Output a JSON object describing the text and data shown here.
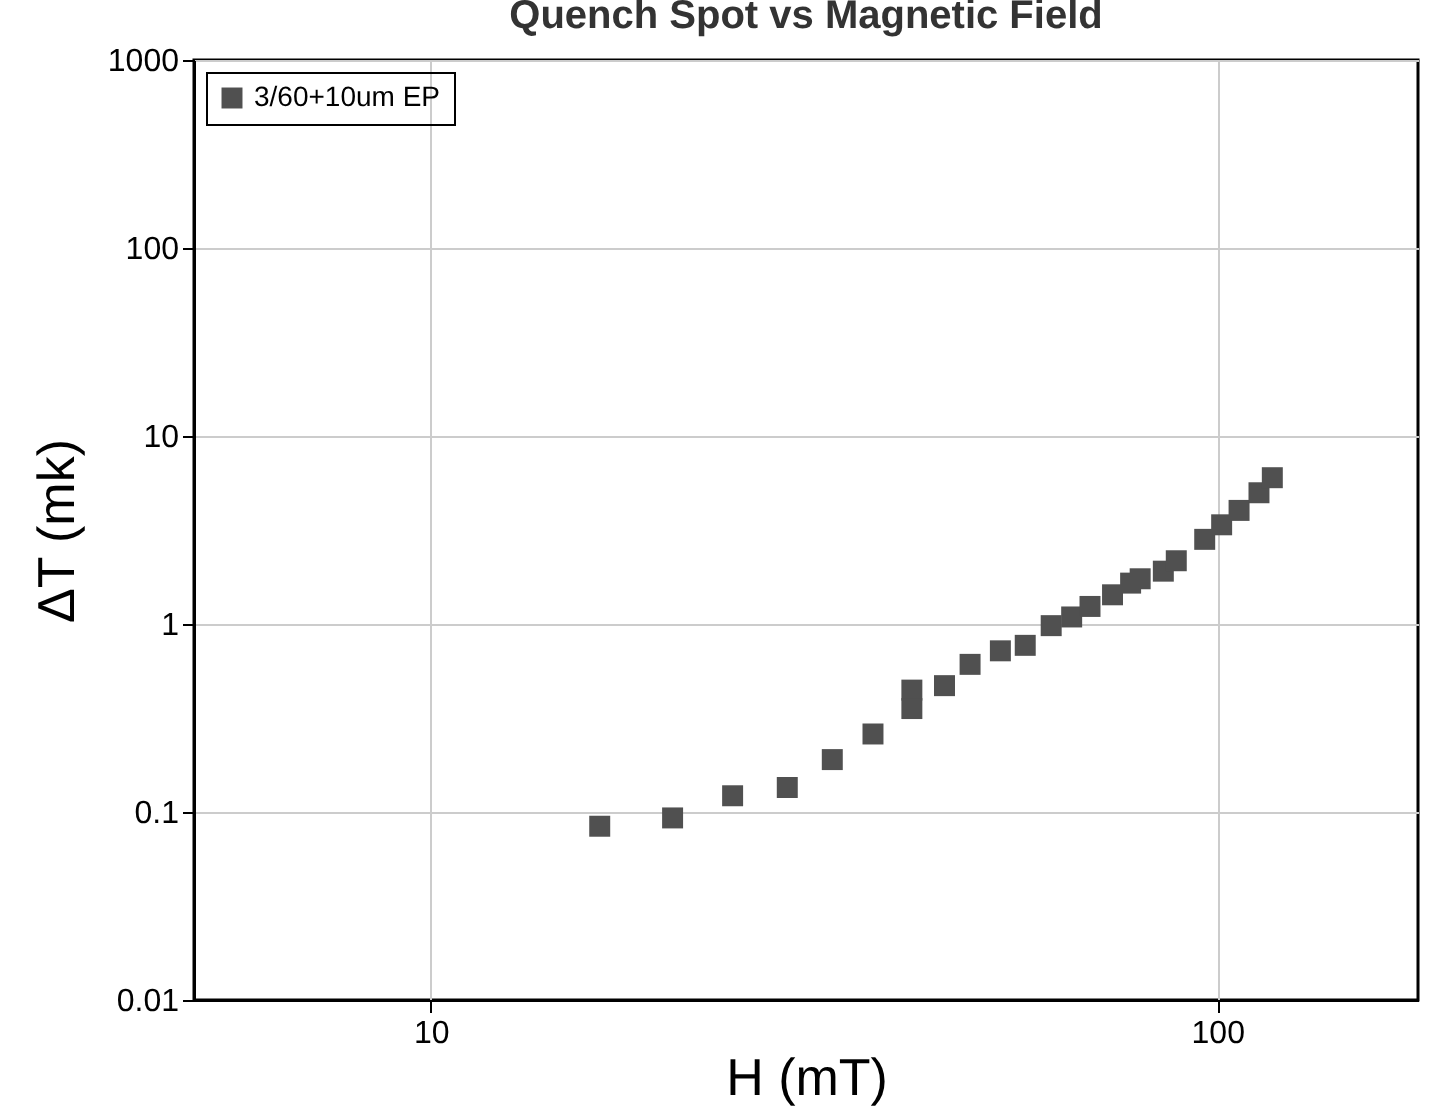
{
  "chart_data": {
    "type": "scatter",
    "title": "Quench Spot vs Magnetic Field",
    "xlabel": "H (mT)",
    "ylabel": "ΔT (mk)",
    "log": "xy",
    "xlim": [
      5,
      180
    ],
    "xticks": [
      10,
      100
    ],
    "ylim": [
      0.01,
      1000
    ],
    "yticks": [
      0.01,
      0.1,
      1,
      10,
      100,
      1000
    ],
    "grid": true,
    "legend": "top left",
    "marker": "square",
    "x": [
      16.4,
      20.3,
      24.2,
      28.4,
      32.4,
      36.5,
      40.9,
      40.9,
      45.0,
      48.5,
      53.0,
      57.0,
      61.5,
      65.3,
      68.9,
      73.6,
      77.6,
      79.8,
      85.4,
      88.7,
      96.4,
      101.3,
      106.6,
      113,
      117.5
    ],
    "series": [
      {
        "name": "3/60+10um EP",
        "color": "#505050",
        "values": [
          0.084,
          0.093,
          0.122,
          0.135,
          0.19,
          0.26,
          0.445,
          0.355,
          0.47,
          0.61,
          0.72,
          0.77,
          0.98,
          1.09,
          1.24,
          1.43,
          1.65,
          1.74,
          1.91,
          2.17,
          2.82,
          3.37,
          4.02,
          4.99,
          6.0
        ]
      }
    ]
  }
}
